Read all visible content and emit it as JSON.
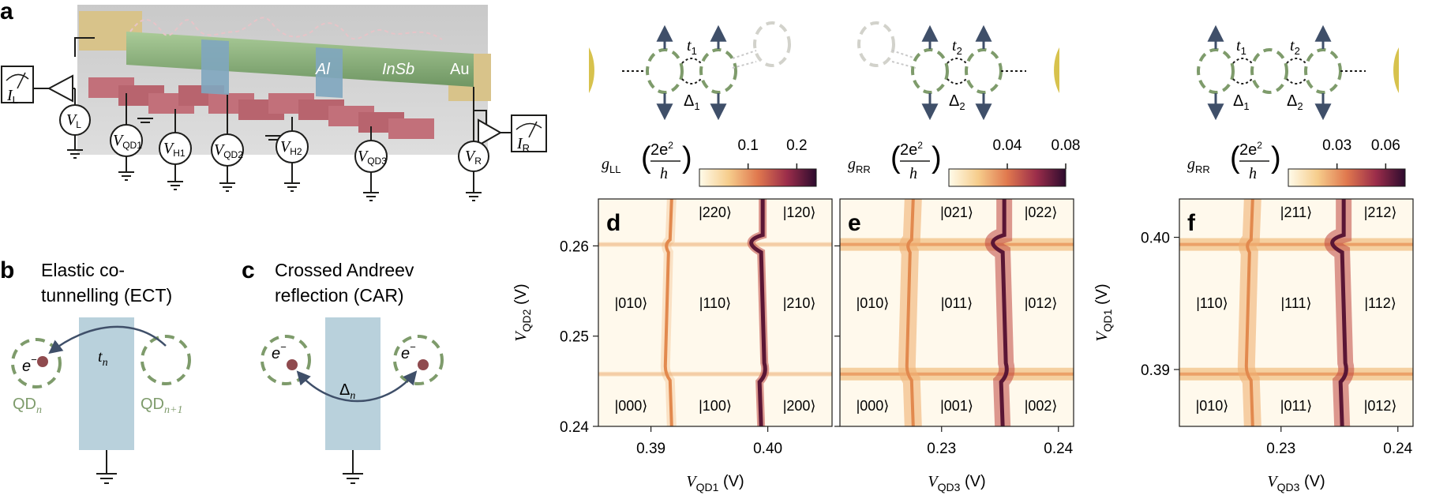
{
  "panels": {
    "a": {
      "label": "a",
      "materials": [
        "Al",
        "InSb",
        "Au"
      ],
      "meters": [
        {
          "sym": "I",
          "sub": "L"
        },
        {
          "sym": "I",
          "sub": "R"
        }
      ],
      "sources": [
        {
          "sym": "V",
          "sub": "L"
        },
        {
          "sym": "V",
          "sub": "QD1"
        },
        {
          "sym": "V",
          "sub": "H1"
        },
        {
          "sym": "V",
          "sub": "QD2"
        },
        {
          "sym": "V",
          "sub": "H2"
        },
        {
          "sym": "V",
          "sub": "QD3"
        },
        {
          "sym": "V",
          "sub": "R"
        }
      ]
    },
    "b": {
      "label": "b",
      "title_line1": "Elastic co-",
      "title_line2": "tunnelling (ECT)",
      "electron": "e",
      "electron_sup": "−",
      "coupling": "t",
      "coupling_sub": "n",
      "dot_left": "QD",
      "dot_left_sub": "n",
      "dot_right": "QD",
      "dot_right_sub": "n+1"
    },
    "c": {
      "label": "c",
      "title_line1": "Crossed Andreev",
      "title_line2": "reflection (CAR)",
      "electron": "e",
      "electron_sup": "−",
      "coupling": "Δ",
      "coupling_sub": "n"
    }
  },
  "schematics": [
    {
      "labels_top": [
        {
          "t": "t",
          "s": "1"
        }
      ],
      "labels_bottom": [
        {
          "t": "Δ",
          "s": "1"
        }
      ]
    },
    {
      "labels_top": [
        {
          "t": "t",
          "s": "2"
        }
      ],
      "labels_bottom": [
        {
          "t": "Δ",
          "s": "2"
        }
      ]
    },
    {
      "labels_top": [
        {
          "t": "t",
          "s": "1"
        },
        {
          "t": "t",
          "s": "2"
        }
      ],
      "labels_bottom": [
        {
          "t": "Δ",
          "s": "1"
        },
        {
          "t": "Δ",
          "s": "2"
        }
      ]
    }
  ],
  "colorbars": [
    {
      "quantity": "g",
      "quantity_sub": "LL",
      "unit_num": "2e",
      "unit_num_sup": "2",
      "unit_den": "h",
      "ticks": [
        "0.1",
        "0.2"
      ]
    },
    {
      "quantity": "g",
      "quantity_sub": "RR",
      "unit_num": "2e",
      "unit_num_sup": "2",
      "unit_den": "h",
      "ticks": [
        "0.04",
        "0.08"
      ]
    },
    {
      "quantity": "g",
      "quantity_sub": "RR",
      "unit_num": "2e",
      "unit_num_sup": "2",
      "unit_den": "h",
      "ticks": [
        "0.03",
        "0.06"
      ]
    }
  ],
  "chart_data": [
    {
      "type": "heatmap",
      "panel": "d",
      "xlabel": "V",
      "xlabel_sub": "QD1",
      "xlabel_unit": " (V)",
      "ylabel": "V",
      "ylabel_sub": "QD2",
      "ylabel_unit": " (V)",
      "xticks": [
        "0.39",
        "0.40"
      ],
      "yticks": [
        "0.24",
        "0.25",
        "0.26"
      ],
      "x_ticks_values": [
        0.39,
        0.4
      ],
      "y_ticks_values": [
        0.24,
        0.25,
        0.26
      ],
      "xlim": [
        0.3855,
        0.4055
      ],
      "ylim": [
        0.24,
        0.2652
      ],
      "colorbar_ticks": [
        0.1,
        0.2
      ],
      "states": [
        "|220⟩",
        "|120⟩",
        "|010⟩",
        "|110⟩",
        "|210⟩",
        "|000⟩",
        "|100⟩",
        "|200⟩"
      ]
    },
    {
      "type": "heatmap",
      "panel": "e",
      "xlabel": "V",
      "xlabel_sub": "QD3",
      "xlabel_unit": " (V)",
      "xticks": [
        "0.23",
        "0.24"
      ],
      "x_ticks_values": [
        0.23,
        0.24
      ],
      "xlim": [
        0.2213,
        0.2413
      ],
      "ylim": [
        0.24,
        0.2652
      ],
      "colorbar_ticks": [
        0.04,
        0.08
      ],
      "states": [
        "|021⟩",
        "|022⟩",
        "|010⟩",
        "|011⟩",
        "|012⟩",
        "|000⟩",
        "|001⟩",
        "|002⟩"
      ]
    },
    {
      "type": "heatmap",
      "panel": "f",
      "xlabel": "V",
      "xlabel_sub": "QD3",
      "xlabel_unit": " (V)",
      "ylabel": "V",
      "ylabel_sub": "QD1",
      "ylabel_unit": " (V)",
      "xticks": [
        "0.23",
        "0.24"
      ],
      "yticks": [
        "0.39",
        "0.40"
      ],
      "x_ticks_values": [
        0.23,
        0.24
      ],
      "y_ticks_values": [
        0.39,
        0.4
      ],
      "xlim": [
        0.2213,
        0.2413
      ],
      "ylim": [
        0.3857,
        0.4029
      ],
      "colorbar_ticks": [
        0.03,
        0.06
      ],
      "states": [
        "|211⟩",
        "|212⟩",
        "|110⟩",
        "|111⟩",
        "|112⟩",
        "|010⟩",
        "|011⟩",
        "|012⟩"
      ]
    }
  ],
  "colors": {
    "dot_green": "#7e9b6b",
    "gold": "#d7c24d",
    "arrow_navy": "#3f4f69",
    "barrier_blue": "#b9d1dc",
    "electron": "#8f4a4e",
    "map_bg": "#fff9ec",
    "map_dark": "#2d0b2e"
  }
}
